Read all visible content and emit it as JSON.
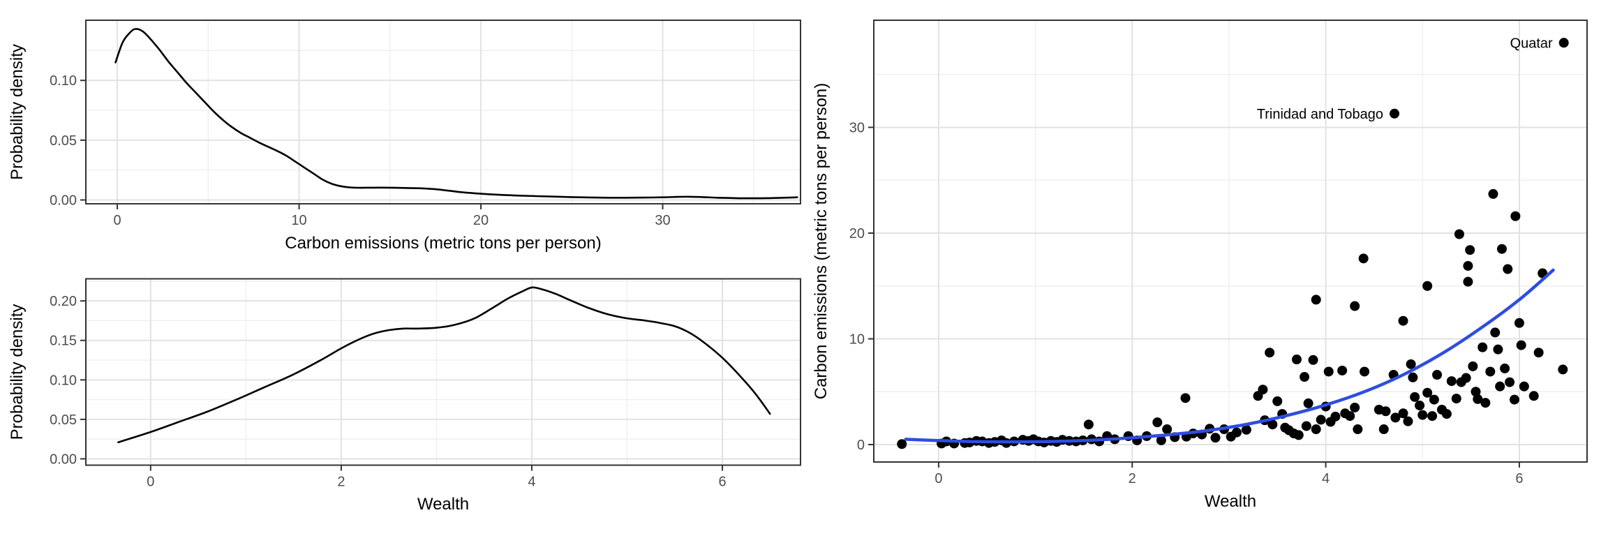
{
  "figure": {
    "background": "#FFFFFF"
  },
  "colors": {
    "density_line": "#000000",
    "smooth_line": "#2E4DE1",
    "point": "#000000",
    "grid_major": "#E2E2E2",
    "grid_minor": "#EFEFEF",
    "panel_border": "#333333",
    "tick_mark": "#333333",
    "tick_label": "#4D4D4D",
    "axis_title": "#000000",
    "panel_bg": "#FFFFFF"
  },
  "chart_data": [
    {
      "id": "carbon-emissions-density",
      "type": "line",
      "title": "",
      "xlabel": "Carbon emissions (metric tons per person)",
      "ylabel": "Probability density",
      "xlim": [
        -1.73,
        37.58
      ],
      "ylim": [
        -0.0032,
        0.1503
      ],
      "grid": true,
      "legend": "none",
      "x_ticks": {
        "values": [
          0,
          10,
          20,
          30
        ],
        "labels": [
          "0",
          "10",
          "20",
          "30"
        ],
        "minor": [
          5,
          15,
          25,
          35
        ]
      },
      "y_ticks": {
        "values": [
          0,
          0.05,
          0.1
        ],
        "labels": [
          "0.00",
          "0.05",
          "0.10"
        ],
        "minor": [
          0.025,
          0.075,
          0.125
        ]
      },
      "curve": {
        "x": [
          -0.1,
          0.3,
          0.7,
          1.0,
          1.4,
          1.8,
          2.3,
          2.8,
          3.3,
          3.8,
          4.3,
          4.8,
          5.3,
          5.8,
          6.3,
          6.8,
          7.3,
          7.8,
          8.3,
          8.8,
          9.3,
          9.8,
          10.3,
          10.8,
          11.3,
          11.8,
          12.3,
          12.8,
          13.3,
          14,
          15,
          16,
          16.8,
          17.5,
          18.2,
          19,
          20,
          21,
          22,
          23,
          24,
          25,
          26,
          27,
          28,
          29,
          30,
          30.8,
          31.5,
          32.2,
          33,
          34,
          35,
          36,
          37,
          37.4
        ],
        "y": [
          0.115,
          0.132,
          0.14,
          0.143,
          0.141,
          0.135,
          0.126,
          0.116,
          0.107,
          0.098,
          0.09,
          0.082,
          0.074,
          0.067,
          0.061,
          0.056,
          0.052,
          0.048,
          0.0445,
          0.041,
          0.037,
          0.032,
          0.027,
          0.022,
          0.017,
          0.0135,
          0.0115,
          0.0105,
          0.0102,
          0.0103,
          0.0103,
          0.01,
          0.0097,
          0.009,
          0.0078,
          0.0064,
          0.0052,
          0.0043,
          0.0037,
          0.0032,
          0.0028,
          0.0024,
          0.0021,
          0.0019,
          0.0019,
          0.002,
          0.0022,
          0.0026,
          0.0027,
          0.0024,
          0.0019,
          0.0015,
          0.0014,
          0.0016,
          0.002,
          0.0023
        ]
      }
    },
    {
      "id": "wealth-density",
      "type": "line",
      "title": "",
      "xlabel": "Wealth",
      "ylabel": "Probability density",
      "xlim": [
        -0.68,
        6.82
      ],
      "ylim": [
        -0.008,
        0.228
      ],
      "grid": true,
      "legend": "none",
      "x_ticks": {
        "values": [
          0,
          2,
          4,
          6
        ],
        "labels": [
          "0",
          "2",
          "4",
          "6"
        ],
        "minor": [
          1,
          3,
          5
        ]
      },
      "y_ticks": {
        "values": [
          0,
          0.05,
          0.1,
          0.15,
          0.2
        ],
        "labels": [
          "0.00",
          "0.05",
          "0.10",
          "0.15",
          "0.20"
        ],
        "minor": [
          0.025,
          0.075,
          0.125,
          0.175,
          0.225
        ]
      },
      "curve": {
        "x": [
          -0.34,
          0,
          0.3,
          0.6,
          0.9,
          1.2,
          1.5,
          1.8,
          2.0,
          2.2,
          2.35,
          2.5,
          2.65,
          2.8,
          3.0,
          3.2,
          3.4,
          3.6,
          3.75,
          3.9,
          4.0,
          4.1,
          4.25,
          4.4,
          4.6,
          4.8,
          5.0,
          5.2,
          5.35,
          5.5,
          5.65,
          5.8,
          6.0,
          6.2,
          6.35,
          6.5
        ],
        "y": [
          0.021,
          0.034,
          0.047,
          0.06,
          0.075,
          0.091,
          0.107,
          0.126,
          0.14,
          0.152,
          0.159,
          0.163,
          0.165,
          0.165,
          0.166,
          0.17,
          0.178,
          0.192,
          0.203,
          0.212,
          0.217,
          0.215,
          0.209,
          0.201,
          0.191,
          0.183,
          0.178,
          0.175,
          0.172,
          0.168,
          0.16,
          0.148,
          0.128,
          0.103,
          0.082,
          0.057
        ]
      }
    },
    {
      "id": "emissions-vs-wealth-scatter",
      "type": "scatter",
      "title": "",
      "xlabel": "Wealth",
      "ylabel": "Carbon emissions (metric tons per person)",
      "xlim": [
        -0.67,
        6.7
      ],
      "ylim": [
        -1.65,
        40.13
      ],
      "grid": true,
      "legend": "none",
      "x_ticks": {
        "values": [
          0,
          2,
          4,
          6
        ],
        "labels": [
          "0",
          "2",
          "4",
          "6"
        ],
        "minor": [
          1,
          3,
          5
        ]
      },
      "y_ticks": {
        "values": [
          0,
          10,
          20,
          30
        ],
        "labels": [
          "0",
          "10",
          "20",
          "30"
        ],
        "minor": [
          5,
          15,
          25,
          35
        ]
      },
      "points": [
        [
          -0.38,
          0.05
        ],
        [
          0.03,
          0.1
        ],
        [
          0.08,
          0.3
        ],
        [
          0.16,
          0.1
        ],
        [
          0.27,
          0.15
        ],
        [
          0.32,
          0.2
        ],
        [
          0.39,
          0.35
        ],
        [
          0.45,
          0.3
        ],
        [
          0.52,
          0.15
        ],
        [
          0.58,
          0.25
        ],
        [
          0.65,
          0.4
        ],
        [
          0.7,
          0.15
        ],
        [
          0.78,
          0.3
        ],
        [
          0.87,
          0.45
        ],
        [
          0.93,
          0.35
        ],
        [
          0.98,
          0.5
        ],
        [
          1.03,
          0.3
        ],
        [
          1.09,
          0.2
        ],
        [
          1.16,
          0.35
        ],
        [
          1.22,
          0.25
        ],
        [
          1.28,
          0.45
        ],
        [
          1.35,
          0.35
        ],
        [
          1.42,
          0.3
        ],
        [
          1.49,
          0.4
        ],
        [
          1.55,
          1.9
        ],
        [
          1.58,
          0.5
        ],
        [
          1.66,
          0.3
        ],
        [
          1.74,
          0.8
        ],
        [
          1.82,
          0.5
        ],
        [
          1.96,
          0.8
        ],
        [
          2.05,
          0.4
        ],
        [
          2.15,
          0.8
        ],
        [
          2.26,
          2.1
        ],
        [
          2.3,
          0.4
        ],
        [
          2.36,
          1.45
        ],
        [
          2.44,
          0.7
        ],
        [
          2.55,
          4.4
        ],
        [
          2.56,
          0.75
        ],
        [
          2.63,
          1.05
        ],
        [
          2.72,
          0.95
        ],
        [
          2.8,
          1.5
        ],
        [
          2.86,
          0.65
        ],
        [
          2.95,
          1.45
        ],
        [
          3.02,
          0.75
        ],
        [
          3.08,
          1.15
        ],
        [
          3.18,
          1.4
        ],
        [
          3.3,
          4.6
        ],
        [
          3.35,
          5.2
        ],
        [
          3.37,
          2.3
        ],
        [
          3.42,
          8.7
        ],
        [
          3.45,
          1.9
        ],
        [
          3.5,
          4.1
        ],
        [
          3.55,
          2.9
        ],
        [
          3.58,
          1.6
        ],
        [
          3.62,
          1.35
        ],
        [
          3.67,
          1.05
        ],
        [
          3.7,
          8.05
        ],
        [
          3.72,
          0.9
        ],
        [
          3.78,
          6.4
        ],
        [
          3.8,
          1.75
        ],
        [
          3.82,
          3.9
        ],
        [
          3.87,
          8.0
        ],
        [
          3.9,
          1.45
        ],
        [
          3.95,
          2.35
        ],
        [
          4.0,
          3.6
        ],
        [
          4.03,
          6.9
        ],
        [
          4.05,
          2.15
        ],
        [
          4.1,
          2.65
        ],
        [
          4.17,
          7.0
        ],
        [
          4.2,
          2.95
        ],
        [
          4.25,
          2.7
        ],
        [
          4.3,
          3.5
        ],
        [
          4.33,
          1.45
        ],
        [
          4.4,
          6.9
        ],
        [
          4.55,
          3.3
        ],
        [
          4.6,
          1.45
        ],
        [
          4.62,
          3.15
        ],
        [
          4.7,
          6.6
        ],
        [
          4.72,
          2.55
        ],
        [
          4.8,
          2.95
        ],
        [
          4.85,
          2.2
        ],
        [
          4.88,
          7.6
        ],
        [
          4.9,
          6.35
        ],
        [
          4.92,
          4.5
        ],
        [
          4.97,
          3.7
        ],
        [
          5.0,
          2.8
        ],
        [
          5.05,
          4.9
        ],
        [
          5.1,
          2.7
        ],
        [
          5.12,
          4.25
        ],
        [
          3.9,
          13.7
        ],
        [
          4.3,
          13.1
        ],
        [
          4.39,
          17.6
        ],
        [
          4.8,
          11.7
        ],
        [
          5.05,
          15.0
        ],
        [
          5.38,
          19.9
        ],
        [
          5.47,
          16.9
        ],
        [
          5.47,
          15.4
        ],
        [
          5.49,
          18.4
        ],
        [
          5.73,
          23.7
        ],
        [
          5.82,
          18.5
        ],
        [
          5.88,
          16.6
        ],
        [
          5.96,
          21.6
        ],
        [
          6.24,
          16.2
        ],
        [
          5.15,
          6.6
        ],
        [
          5.2,
          3.3
        ],
        [
          5.25,
          2.9
        ],
        [
          5.3,
          6.0
        ],
        [
          5.35,
          4.35
        ],
        [
          5.4,
          5.9
        ],
        [
          5.45,
          6.3
        ],
        [
          5.52,
          7.4
        ],
        [
          5.55,
          5.0
        ],
        [
          5.57,
          4.3
        ],
        [
          5.62,
          9.2
        ],
        [
          5.65,
          3.95
        ],
        [
          5.7,
          6.9
        ],
        [
          5.75,
          10.6
        ],
        [
          5.78,
          9.0
        ],
        [
          5.8,
          5.5
        ],
        [
          5.85,
          7.2
        ],
        [
          5.9,
          5.9
        ],
        [
          5.95,
          4.25
        ],
        [
          6.0,
          11.5
        ],
        [
          6.02,
          9.4
        ],
        [
          6.05,
          5.5
        ],
        [
          6.15,
          4.6
        ],
        [
          6.2,
          8.7
        ],
        [
          6.45,
          7.1
        ]
      ],
      "smooth": {
        "x": [
          -0.34,
          0,
          0.4,
          0.8,
          1.2,
          1.6,
          2.0,
          2.4,
          2.8,
          3.2,
          3.6,
          4.0,
          4.4,
          4.8,
          5.2,
          5.6,
          6.0,
          6.35
        ],
        "y": [
          0.5,
          0.38,
          0.28,
          0.26,
          0.3,
          0.42,
          0.65,
          0.95,
          1.35,
          1.95,
          2.75,
          3.75,
          5.0,
          6.6,
          8.6,
          11.0,
          13.7,
          16.5
        ]
      },
      "annotations": [
        {
          "label": "Quatar",
          "x": 6.46,
          "y": 38.0
        },
        {
          "label": "Trinidad and Tobago",
          "x": 4.71,
          "y": 31.3
        }
      ]
    }
  ]
}
